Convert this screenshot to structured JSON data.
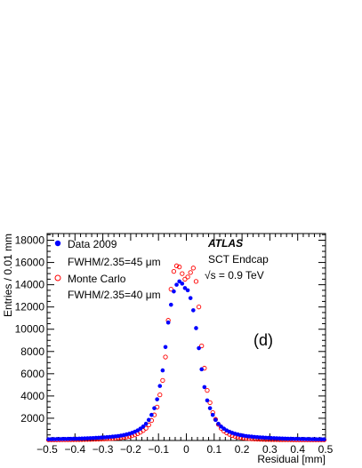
{
  "chart_data": {
    "type": "scatter",
    "xlabel": "Residual [mm]",
    "ylabel": "Entries / 0.01 mm",
    "xlim": [
      -0.5,
      0.5
    ],
    "ylim": [
      0,
      18600
    ],
    "x_ticks": [
      -0.5,
      -0.4,
      -0.3,
      -0.2,
      -0.1,
      0,
      0.1,
      0.2,
      0.3,
      0.4,
      0.5
    ],
    "x_tick_labels": [
      "−0.5",
      "−0.4",
      "−0.3",
      "−0.2",
      "−0.1",
      "0",
      "0.1",
      "0.2",
      "0.3",
      "0.4",
      "0.5"
    ],
    "y_ticks": [
      2000,
      4000,
      6000,
      8000,
      10000,
      12000,
      14000,
      16000,
      18000
    ],
    "y_tick_labels": [
      "2000",
      "4000",
      "6000",
      "8000",
      "10000",
      "12000",
      "14000",
      "16000",
      "18000"
    ],
    "legend_position": "top-left",
    "grid": false,
    "annotations": {
      "experiment": "ATLAS",
      "detector": "SCT Endcap",
      "energy": "√s = 0.9 TeV",
      "panel": "(d)"
    },
    "series": [
      {
        "name": "Data 2009",
        "resolution": "FWHM/2.35=45 μm",
        "marker": "filled-circle",
        "color": "#0000ff",
        "x": [
          -0.495,
          -0.485,
          -0.475,
          -0.465,
          -0.455,
          -0.445,
          -0.435,
          -0.425,
          -0.415,
          -0.405,
          -0.395,
          -0.385,
          -0.375,
          -0.365,
          -0.355,
          -0.345,
          -0.335,
          -0.325,
          -0.315,
          -0.305,
          -0.295,
          -0.285,
          -0.275,
          -0.265,
          -0.255,
          -0.245,
          -0.235,
          -0.225,
          -0.215,
          -0.205,
          -0.195,
          -0.185,
          -0.175,
          -0.165,
          -0.155,
          -0.145,
          -0.135,
          -0.125,
          -0.115,
          -0.105,
          -0.095,
          -0.085,
          -0.075,
          -0.065,
          -0.055,
          -0.045,
          -0.035,
          -0.025,
          -0.015,
          -0.005,
          0.005,
          0.015,
          0.025,
          0.035,
          0.045,
          0.055,
          0.065,
          0.075,
          0.085,
          0.095,
          0.105,
          0.115,
          0.125,
          0.135,
          0.145,
          0.155,
          0.165,
          0.175,
          0.185,
          0.195,
          0.205,
          0.215,
          0.225,
          0.235,
          0.245,
          0.255,
          0.265,
          0.275,
          0.285,
          0.295,
          0.305,
          0.315,
          0.325,
          0.335,
          0.345,
          0.355,
          0.365,
          0.375,
          0.385,
          0.395,
          0.405,
          0.415,
          0.425,
          0.435,
          0.445,
          0.455,
          0.465,
          0.475,
          0.485,
          0.495
        ],
        "y": [
          110,
          115,
          120,
          125,
          130,
          135,
          140,
          145,
          150,
          155,
          160,
          170,
          180,
          190,
          200,
          210,
          220,
          235,
          250,
          265,
          280,
          300,
          320,
          345,
          370,
          400,
          440,
          480,
          540,
          600,
          680,
          780,
          900,
          1060,
          1250,
          1500,
          1850,
          2300,
          2900,
          3700,
          4900,
          6300,
          8400,
          10600,
          12200,
          13400,
          14000,
          14300,
          14100,
          13700,
          13500,
          12800,
          11700,
          10100,
          8300,
          6400,
          4800,
          3600,
          2900,
          2300,
          1850,
          1500,
          1250,
          1060,
          900,
          780,
          680,
          600,
          540,
          480,
          440,
          400,
          370,
          345,
          320,
          300,
          280,
          265,
          250,
          235,
          220,
          210,
          200,
          190,
          180,
          170,
          160,
          155,
          150,
          145,
          140,
          135,
          130,
          125,
          120,
          115,
          112,
          110,
          108,
          105
        ]
      },
      {
        "name": "Monte Carlo",
        "resolution": "FWHM/2.35=40 μm",
        "marker": "open-circle",
        "color": "#ff0000",
        "x": [
          -0.495,
          -0.485,
          -0.475,
          -0.465,
          -0.455,
          -0.445,
          -0.435,
          -0.425,
          -0.415,
          -0.405,
          -0.395,
          -0.385,
          -0.375,
          -0.365,
          -0.355,
          -0.345,
          -0.335,
          -0.325,
          -0.315,
          -0.305,
          -0.295,
          -0.285,
          -0.275,
          -0.265,
          -0.255,
          -0.245,
          -0.235,
          -0.225,
          -0.215,
          -0.205,
          -0.195,
          -0.185,
          -0.175,
          -0.165,
          -0.155,
          -0.145,
          -0.135,
          -0.125,
          -0.115,
          -0.105,
          -0.095,
          -0.085,
          -0.075,
          -0.065,
          -0.055,
          -0.045,
          -0.035,
          -0.025,
          -0.015,
          -0.005,
          0.005,
          0.015,
          0.025,
          0.035,
          0.045,
          0.055,
          0.065,
          0.075,
          0.085,
          0.095,
          0.105,
          0.115,
          0.125,
          0.135,
          0.145,
          0.155,
          0.165,
          0.175,
          0.185,
          0.195,
          0.205,
          0.215,
          0.225,
          0.235,
          0.245,
          0.255,
          0.265,
          0.275,
          0.285,
          0.295,
          0.305,
          0.315,
          0.325,
          0.335,
          0.345,
          0.355,
          0.365,
          0.375,
          0.385,
          0.395,
          0.405,
          0.415,
          0.425,
          0.435,
          0.445,
          0.455,
          0.465,
          0.475,
          0.485,
          0.495
        ],
        "y": [
          60,
          60,
          62,
          64,
          66,
          68,
          70,
          72,
          74,
          76,
          78,
          82,
          86,
          90,
          95,
          100,
          108,
          116,
          124,
          132,
          140,
          150,
          165,
          180,
          200,
          225,
          250,
          280,
          320,
          370,
          430,
          510,
          610,
          740,
          900,
          1100,
          1400,
          1800,
          2300,
          3000,
          4100,
          5400,
          7500,
          10800,
          13600,
          15200,
          15700,
          15600,
          15000,
          14500,
          14700,
          15100,
          15500,
          14300,
          12000,
          8500,
          6500,
          4500,
          3400,
          2500,
          1900,
          1450,
          1100,
          850,
          680,
          550,
          450,
          370,
          310,
          260,
          220,
          190,
          165,
          145,
          130,
          118,
          108,
          100,
          94,
          88,
          84,
          80,
          77,
          74,
          72,
          70,
          68,
          66,
          64,
          63,
          62,
          61,
          60,
          60,
          59,
          59,
          58,
          58,
          57,
          57
        ]
      }
    ]
  }
}
